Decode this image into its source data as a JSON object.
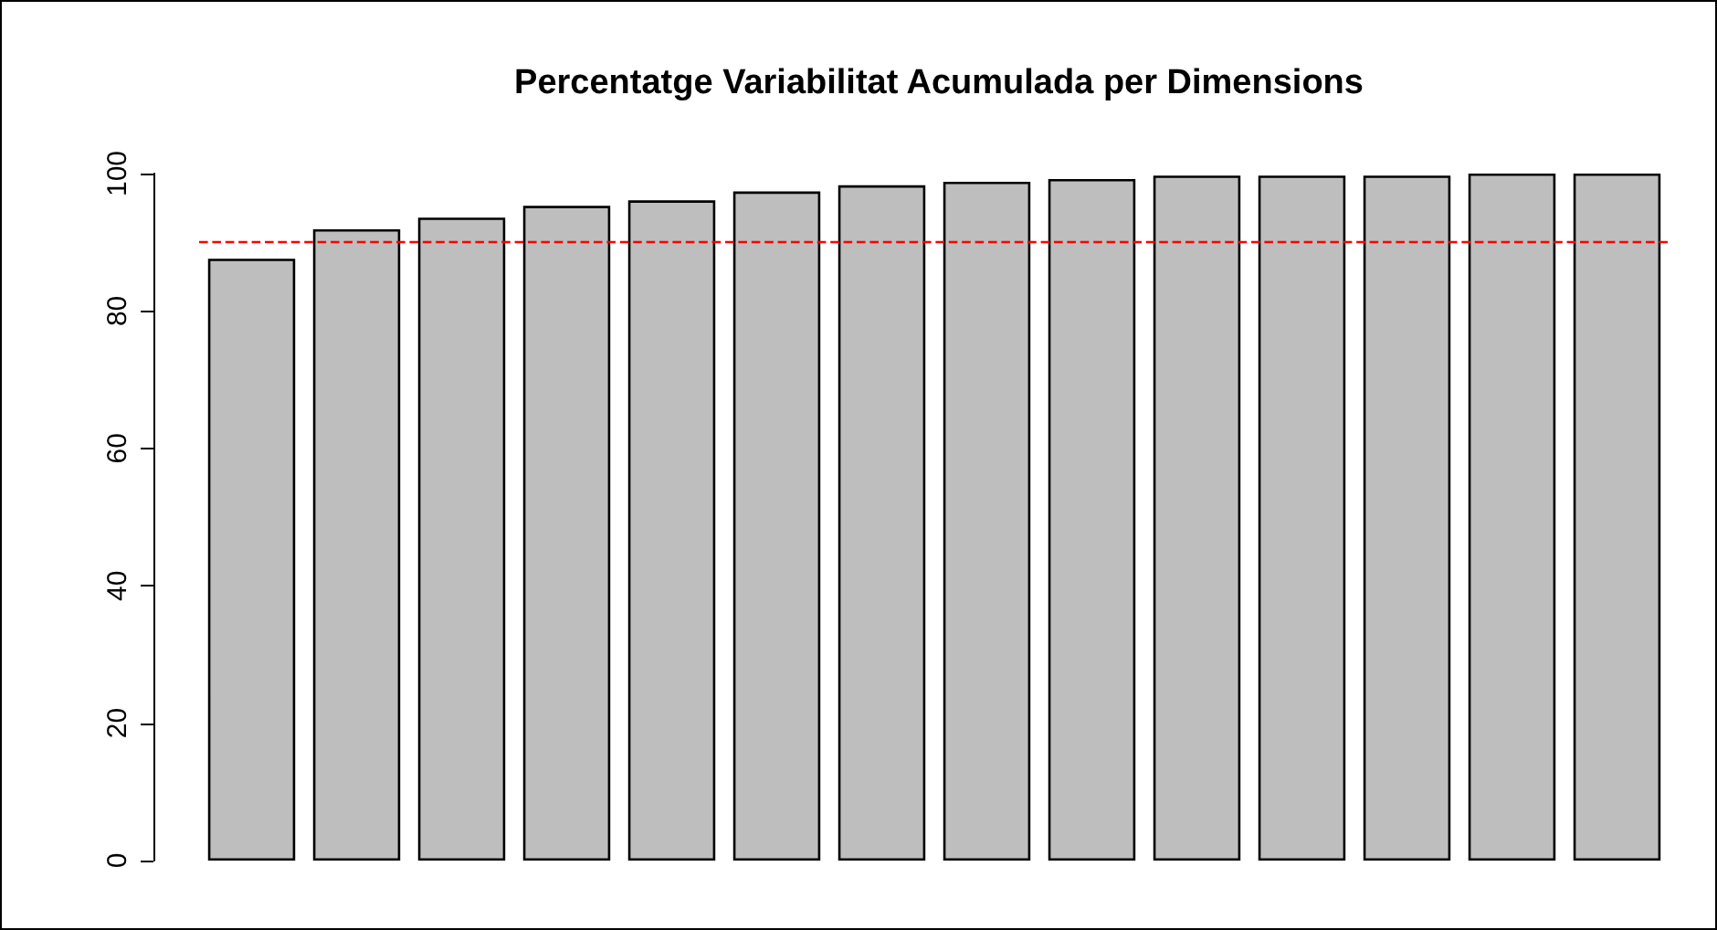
{
  "chart_data": {
    "type": "bar",
    "title": "Percentatge Variabilitat Acumulada per Dimensions",
    "categories": [
      null,
      null,
      null,
      null,
      null,
      null,
      null,
      null,
      null,
      null,
      null,
      null,
      null,
      null
    ],
    "values": [
      87.6,
      91.9,
      93.6,
      95.3,
      96.1,
      97.4,
      98.3,
      98.8,
      99.2,
      99.7,
      99.7,
      99.7,
      100,
      100
    ],
    "color": "#bebebe",
    "ylim": [
      0,
      100
    ],
    "yticks": [
      0,
      20,
      40,
      60,
      80,
      100
    ],
    "tick_labels": "y",
    "grid": false,
    "ref_lines": [
      {
        "axis": "y",
        "value": 90,
        "color": "#ff0000",
        "line_style": "dashed"
      }
    ]
  }
}
